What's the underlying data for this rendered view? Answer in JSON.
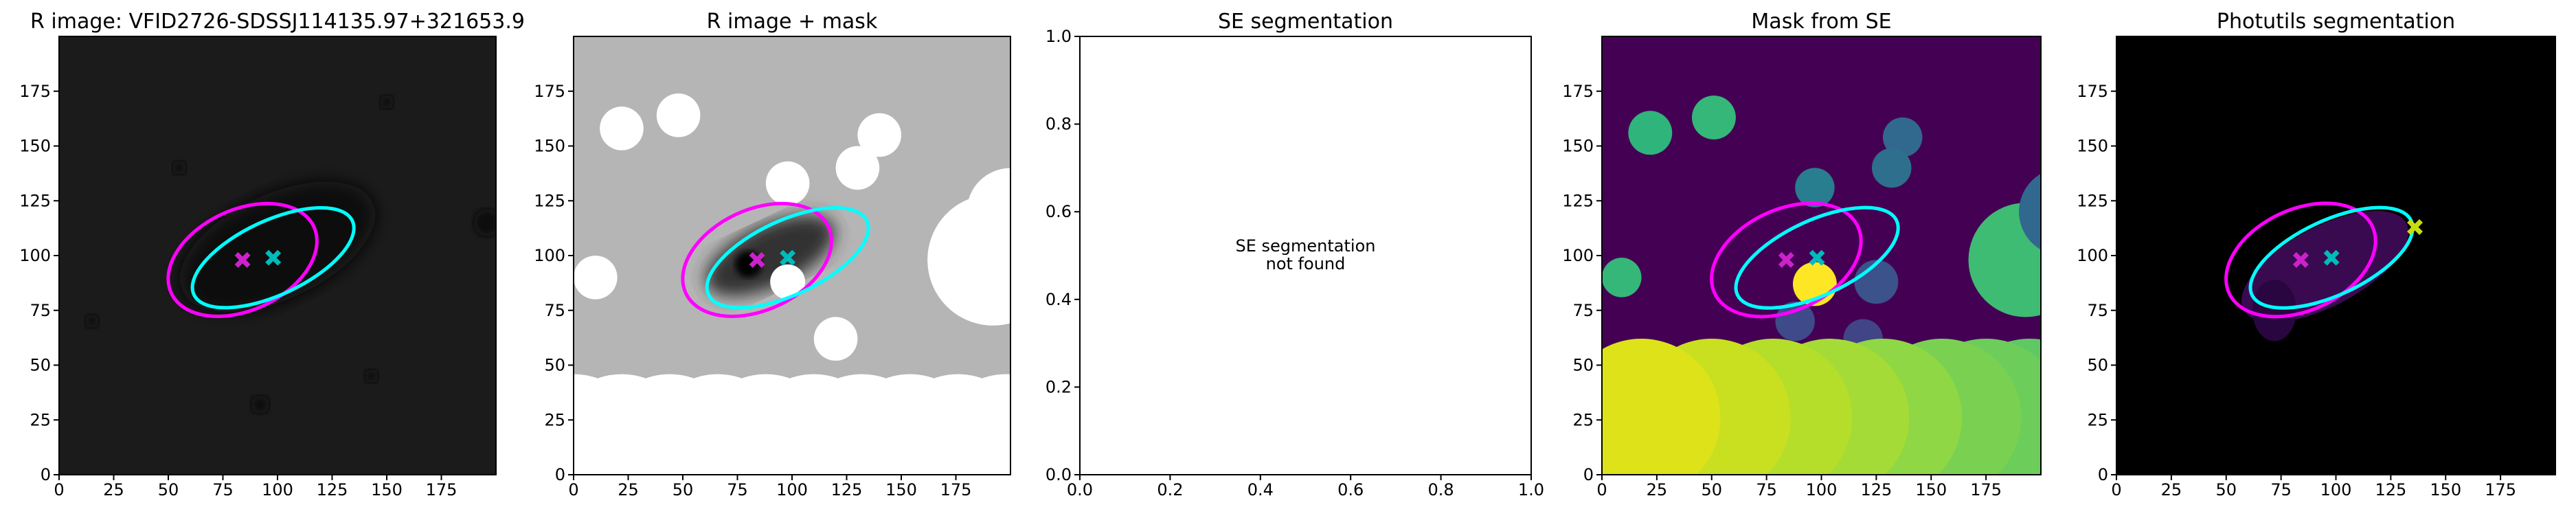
{
  "chart_data": [
    {
      "type": "image",
      "title": "R image: VFID2726-SDSSJ114135.97+321653.9",
      "xlim": [
        0,
        200
      ],
      "ylim": [
        0,
        200
      ],
      "xticks": [
        0,
        25,
        50,
        75,
        100,
        125,
        150,
        175
      ],
      "yticks": [
        0,
        25,
        50,
        75,
        100,
        125,
        150,
        175
      ],
      "markers": [
        {
          "x": 84,
          "y": 98,
          "color": "#cc22cc"
        },
        {
          "x": 98,
          "y": 99,
          "color": "#00bbbb"
        }
      ],
      "ellipses": [
        {
          "x": 84,
          "y": 98,
          "width": 72,
          "height": 46,
          "angle": 25,
          "color": "#ff00ff"
        },
        {
          "x": 98,
          "y": 99,
          "width": 80,
          "height": 34,
          "angle": 25,
          "color": "#00ffff"
        }
      ]
    },
    {
      "type": "image",
      "title": "R image + mask",
      "xlim": [
        0,
        200
      ],
      "ylim": [
        0,
        200
      ],
      "xticks": [
        0,
        25,
        50,
        75,
        100,
        125,
        150,
        175
      ],
      "yticks": [
        0,
        25,
        50,
        75,
        100,
        125,
        150,
        175
      ],
      "markers": [
        {
          "x": 84,
          "y": 98,
          "color": "#cc22cc"
        },
        {
          "x": 98,
          "y": 99,
          "color": "#00bbbb"
        }
      ],
      "ellipses": [
        {
          "x": 84,
          "y": 98,
          "width": 72,
          "height": 46,
          "angle": 25,
          "color": "#ff00ff"
        },
        {
          "x": 98,
          "y": 99,
          "width": 80,
          "height": 34,
          "angle": 25,
          "color": "#00ffff"
        }
      ]
    },
    {
      "type": "empty",
      "title": "SE segmentation",
      "xlim": [
        0,
        1
      ],
      "ylim": [
        0,
        1
      ],
      "xticks": [
        {
          "value": 0,
          "label": "0.0"
        },
        0.2,
        0.4,
        0.6,
        0.8,
        {
          "value": 1,
          "label": "1.0"
        }
      ],
      "yticks": [
        {
          "value": 0,
          "label": "0.0"
        },
        0.2,
        0.4,
        0.6,
        0.8,
        {
          "value": 1,
          "label": "1.0"
        }
      ],
      "annotation": [
        "SE segmentation",
        "not found"
      ]
    },
    {
      "type": "image",
      "title": "Mask from SE",
      "xlim": [
        0,
        200
      ],
      "ylim": [
        0,
        200
      ],
      "xticks": [
        0,
        25,
        50,
        75,
        100,
        125,
        150,
        175
      ],
      "yticks": [
        0,
        25,
        50,
        75,
        100,
        125,
        150,
        175
      ],
      "markers": [
        {
          "x": 84,
          "y": 98,
          "color": "#cc22cc"
        },
        {
          "x": 98,
          "y": 99,
          "color": "#00bbbb"
        }
      ],
      "ellipses": [
        {
          "x": 84,
          "y": 98,
          "width": 72,
          "height": 46,
          "angle": 25,
          "color": "#ff00ff"
        },
        {
          "x": 98,
          "y": 99,
          "width": 80,
          "height": 34,
          "angle": 25,
          "color": "#00ffff"
        }
      ]
    },
    {
      "type": "image",
      "title": "Photutils segmentation",
      "xlim": [
        0,
        200
      ],
      "ylim": [
        0,
        200
      ],
      "xticks": [
        0,
        25,
        50,
        75,
        100,
        125,
        150,
        175
      ],
      "yticks": [
        0,
        25,
        50,
        75,
        100,
        125,
        150,
        175
      ],
      "markers": [
        {
          "x": 84,
          "y": 98,
          "color": "#cc22cc"
        },
        {
          "x": 98,
          "y": 99,
          "color": "#00bbbb"
        },
        {
          "x": 136,
          "y": 113,
          "color": "#c8dc14"
        }
      ],
      "ellipses": [
        {
          "x": 84,
          "y": 98,
          "width": 72,
          "height": 46,
          "angle": 25,
          "color": "#ff00ff"
        },
        {
          "x": 98,
          "y": 99,
          "width": 80,
          "height": 34,
          "angle": 25,
          "color": "#00ffff"
        }
      ]
    }
  ]
}
